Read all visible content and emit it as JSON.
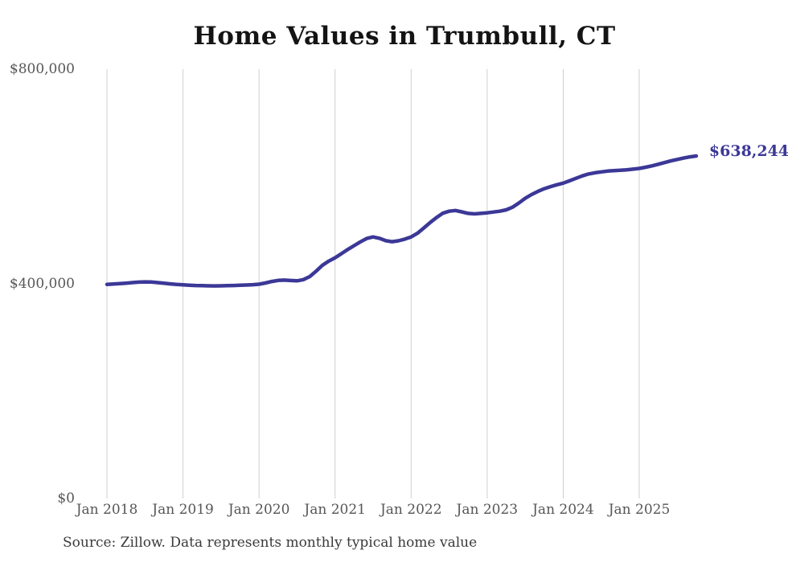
{
  "page": {
    "background": "#ffffff"
  },
  "chart_data": {
    "type": "line",
    "title": "Home Values in Trumbull, CT",
    "source_note": "Source: Zillow. Data represents monthly typical home value",
    "end_label": "$638,244",
    "end_value": 638244,
    "line_color": "#3c3897",
    "grid_color": "#cfcfcf",
    "axis_text_color": "#565656",
    "legend": "none",
    "grid": "vertical-only",
    "ylim": [
      0,
      800000
    ],
    "y_ticks": [
      {
        "label": "$800,000",
        "value": 800000
      },
      {
        "label": "$400,000",
        "value": 400000
      },
      {
        "label": "$0",
        "value": 0
      }
    ],
    "x_ticks": [
      "Jan 2018",
      "Jan 2019",
      "Jan 2020",
      "Jan 2021",
      "Jan 2022",
      "Jan 2023",
      "Jan 2024",
      "Jan 2025"
    ],
    "x_start_month": "2018-01",
    "x_end_month": "2025-10",
    "series": [
      {
        "name": "Monthly typical home value",
        "unit": "USD",
        "monthly_values": [
          399000,
          399600,
          400300,
          401200,
          402200,
          403100,
          403600,
          403300,
          402300,
          401100,
          399900,
          398800,
          398000,
          397400,
          396900,
          396500,
          396200,
          396100,
          396200,
          396500,
          396900,
          397300,
          397800,
          398400,
          399200,
          401500,
          404300,
          406300,
          406900,
          406200,
          405600,
          407800,
          413500,
          423500,
          434500,
          442200,
          448600,
          456200,
          463900,
          471200,
          478200,
          484500,
          487400,
          484800,
          480300,
          478500,
          480200,
          483300,
          487400,
          494300,
          503900,
          514100,
          523400,
          531500,
          535300,
          536600,
          534100,
          531200,
          530400,
          531300,
          532300,
          533800,
          535300,
          537900,
          542800,
          550600,
          559200,
          566300,
          572100,
          577200,
          581100,
          584500,
          587600,
          591900,
          596600,
          601100,
          604600,
          606900,
          608600,
          610000,
          611000,
          611600,
          612500,
          613600,
          615000,
          617200,
          619800,
          622800,
          625900,
          629000,
          631800,
          634300,
          636500,
          638244
        ]
      }
    ]
  }
}
